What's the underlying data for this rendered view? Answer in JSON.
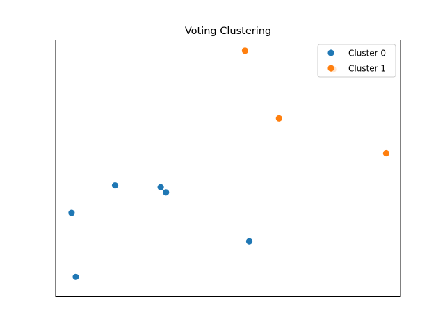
{
  "chart_data": {
    "type": "scatter",
    "title": "Voting Clustering",
    "xlabel": "",
    "ylabel": "",
    "xlim": [
      -0.25,
      6.25
    ],
    "ylim": [
      -0.2,
      7.0
    ],
    "grid": false,
    "ticks_visible": false,
    "legend_placement": "top-right",
    "series": [
      {
        "name": "Cluster 0",
        "color": "#1f77b4",
        "points": [
          {
            "x": 0.05,
            "y": 2.15
          },
          {
            "x": 0.13,
            "y": 0.35
          },
          {
            "x": 0.87,
            "y": 2.92
          },
          {
            "x": 1.73,
            "y": 2.87
          },
          {
            "x": 1.83,
            "y": 2.72
          },
          {
            "x": 3.4,
            "y": 1.35
          }
        ]
      },
      {
        "name": "Cluster 1",
        "color": "#ff7f0e",
        "points": [
          {
            "x": 3.32,
            "y": 6.7
          },
          {
            "x": 3.96,
            "y": 4.8
          },
          {
            "x": 4.98,
            "y": 6.18
          },
          {
            "x": 5.98,
            "y": 3.82
          }
        ]
      }
    ]
  }
}
